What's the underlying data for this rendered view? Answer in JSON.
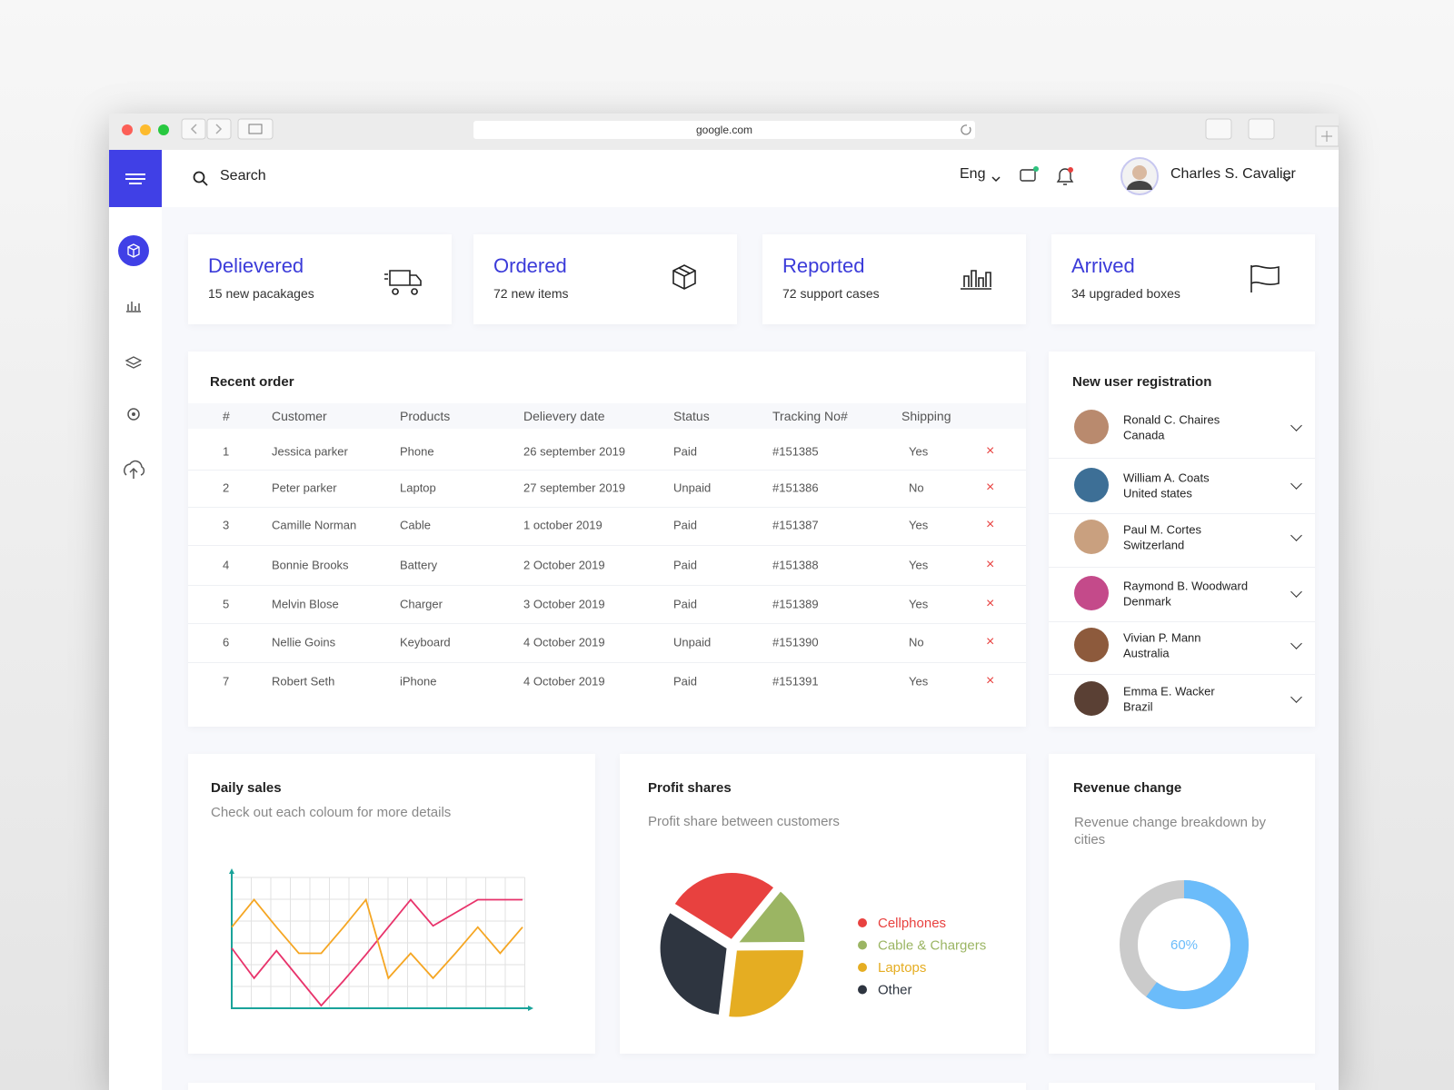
{
  "browser": {
    "url": "google.com"
  },
  "header": {
    "search": "Search",
    "language": "Eng",
    "user_name": "Charles S. Cavalier"
  },
  "stats": [
    {
      "title": "Delievered",
      "subtitle": "15 new pacakages"
    },
    {
      "title": "Ordered",
      "subtitle": "72 new items"
    },
    {
      "title": "Reported",
      "subtitle": "72 support cases"
    },
    {
      "title": "Arrived",
      "subtitle": "34 upgraded boxes"
    }
  ],
  "recent_order": {
    "title": "Recent order",
    "columns": [
      "#",
      "Customer",
      "Products",
      "Delievery date",
      "Status",
      "Tracking No#",
      "Shipping"
    ],
    "rows": [
      [
        1,
        "Jessica parker",
        "Phone",
        "26 september 2019",
        "Paid",
        "#151385",
        "Yes"
      ],
      [
        2,
        "Peter parker",
        "Laptop",
        "27 september 2019",
        "Unpaid",
        "#151386",
        "No"
      ],
      [
        3,
        "Camille Norman",
        "Cable",
        "1 october 2019",
        "Paid",
        "#151387",
        "Yes"
      ],
      [
        4,
        "Bonnie  Brooks",
        "Battery",
        "2 October 2019",
        "Paid",
        "#151388",
        "Yes"
      ],
      [
        5,
        "Melvin  Blose",
        "Charger",
        "3 October 2019",
        "Paid",
        "#151389",
        "Yes"
      ],
      [
        6,
        "Nellie Goins",
        "Keyboard",
        "4 October 2019",
        "Unpaid",
        "#151390",
        "No"
      ],
      [
        7,
        "Robert Seth",
        "iPhone",
        "4 October 2019",
        "Paid",
        "#151391",
        "Yes"
      ]
    ]
  },
  "new_users": {
    "title": "New user registration",
    "users": [
      {
        "name": "Ronald C. Chaires",
        "country": "Canada"
      },
      {
        "name": "William A. Coats",
        "country": "United states"
      },
      {
        "name": "Paul M. Cortes",
        "country": "Switzerland"
      },
      {
        "name": "Raymond B. Woodward",
        "country": "Denmark"
      },
      {
        "name": "Vivian P. Mann",
        "country": "Australia"
      },
      {
        "name": "Emma E. Wacker",
        "country": "Brazil"
      }
    ]
  },
  "chart_data": [
    {
      "type": "line",
      "title": "Daily sales",
      "subtitle": "Check out each coloum for more details",
      "x": [
        0,
        1,
        2,
        3,
        4,
        5,
        6,
        7,
        8,
        9,
        10,
        11,
        12,
        13
      ],
      "xlim": [
        0,
        13
      ],
      "ylim": [
        0,
        100
      ],
      "series": [
        {
          "color": "#e8336b",
          "values": [
            46,
            23,
            44,
            23,
            2,
            21,
            41,
            62,
            83,
            63,
            73,
            83,
            83,
            83
          ]
        },
        {
          "color": "#f5a623",
          "values": [
            62,
            83,
            62,
            42,
            42,
            62,
            83,
            23,
            42,
            23,
            42,
            62,
            42,
            62
          ]
        }
      ]
    },
    {
      "type": "pie",
      "title": "Profit shares",
      "subtitle": "Profit share between customers",
      "categories": [
        "Cellphones",
        "Cable & Chargers",
        "Laptops",
        "Other"
      ],
      "values": [
        27,
        14,
        27,
        32
      ],
      "colors": [
        "#e8413f",
        "#9bb563",
        "#e5ad22",
        "#2e3540"
      ]
    },
    {
      "type": "donut",
      "title": "Revenue change",
      "subtitle": "Revenue change breakdown by cities",
      "values": [
        60
      ],
      "value_labels": [
        "60%"
      ],
      "color": "#6bbcfa",
      "track_color": "#cbcbcb"
    }
  ]
}
